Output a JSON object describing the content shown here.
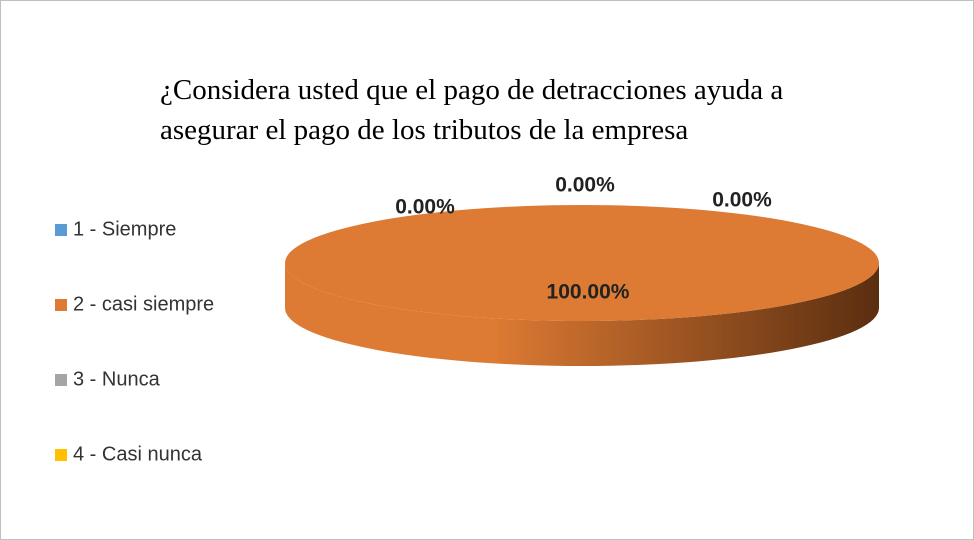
{
  "chart_data": {
    "type": "pie",
    "title": "¿Considera usted que el pago de detracciones ayuda a asegurar el pago de los tributos de la empresa",
    "categories": [
      "1 - Siempre",
      "2 - casi siempre",
      "3 - Nunca",
      "4 - Casi nunca"
    ],
    "values": [
      0,
      100,
      0,
      0
    ],
    "value_labels": [
      "0.00%",
      "100.00%",
      "0.00%",
      "0.00%"
    ],
    "colors": [
      "#5b9bd5",
      "#dd7a33",
      "#a5a5a5",
      "#ffc000"
    ],
    "legend": "left"
  }
}
